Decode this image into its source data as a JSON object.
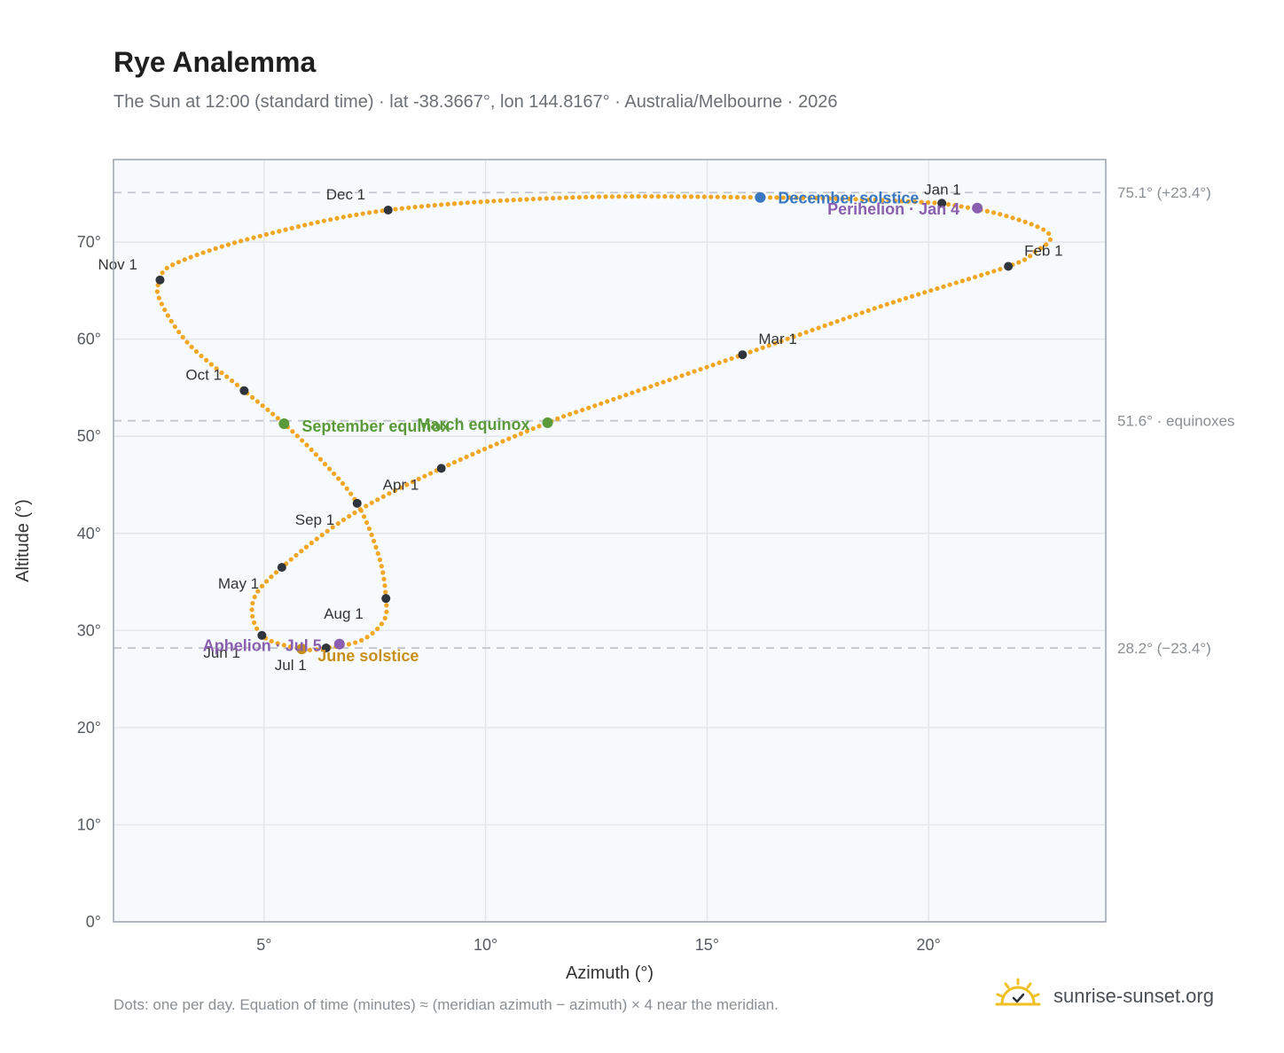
{
  "title": "Rye Analemma",
  "subtitle": "The Sun at 12:00 (standard time) · lat -38.3667°, lon 144.8167° · Australia/Melbourne · 2026",
  "footnote": "Dots: one per day. Equation of time (minutes) ≈ (meridian azimuth − azimuth) × 4 near the meridian.",
  "brand": {
    "text": "sunrise-sunset.org",
    "icon": "sun-logo-icon"
  },
  "colors": {
    "curve": "#f2a623",
    "month_dot": "#2f353d",
    "solstice_dec": "#3a78c2",
    "solstice_jun": "#c98f1b",
    "equinox": "#5a9a3a",
    "apsis": "#8a5fb0",
    "plot_bg": "#f7fafc",
    "grid": "#e3e7ec",
    "ref_line": "#c3c8ce"
  },
  "chart_data": {
    "type": "scatter",
    "title": "Rye Analemma",
    "xlabel": "Azimuth (°)",
    "ylabel": "Altitude (°)",
    "xlim": [
      1.6,
      24.0
    ],
    "ylim": [
      0,
      78.5
    ],
    "grid": true,
    "x_ticks": [
      {
        "value": 5,
        "label": "5°"
      },
      {
        "value": 10,
        "label": "10°"
      },
      {
        "value": 15,
        "label": "15°"
      },
      {
        "value": 20,
        "label": "20°"
      }
    ],
    "y_ticks": [
      {
        "value": 0,
        "label": "0°"
      },
      {
        "value": 10,
        "label": "10°"
      },
      {
        "value": 20,
        "label": "20°"
      },
      {
        "value": 30,
        "label": "30°"
      },
      {
        "value": 40,
        "label": "40°"
      },
      {
        "value": 50,
        "label": "50°"
      },
      {
        "value": 60,
        "label": "60°"
      },
      {
        "value": 70,
        "label": "70°"
      }
    ],
    "reference_lines": [
      {
        "y": 75.1,
        "label": "75.1° (+23.4°)"
      },
      {
        "y": 51.6,
        "label": "51.6° · equinoxes"
      },
      {
        "y": 28.2,
        "label": "28.2° (−23.4°)"
      }
    ],
    "months": [
      {
        "label": "Jan 1",
        "x": 20.3,
        "y": 74.0
      },
      {
        "label": "Feb 1",
        "x": 21.8,
        "y": 67.5
      },
      {
        "label": "Mar 1",
        "x": 15.8,
        "y": 58.4
      },
      {
        "label": "Apr 1",
        "x": 9.0,
        "y": 46.7
      },
      {
        "label": "May 1",
        "x": 5.4,
        "y": 36.5
      },
      {
        "label": "Jun 1",
        "x": 4.95,
        "y": 29.5
      },
      {
        "label": "Jul 1",
        "x": 6.4,
        "y": 28.2
      },
      {
        "label": "Aug 1",
        "x": 7.75,
        "y": 33.3
      },
      {
        "label": "Sep 1",
        "x": 7.1,
        "y": 43.1
      },
      {
        "label": "Oct 1",
        "x": 4.55,
        "y": 54.7
      },
      {
        "label": "Nov 1",
        "x": 2.65,
        "y": 66.1
      },
      {
        "label": "Dec 1",
        "x": 7.8,
        "y": 73.3
      }
    ],
    "events": [
      {
        "label": "December solstice",
        "x": 16.2,
        "y": 74.6,
        "color": "#3a78c2"
      },
      {
        "label": "Perihelion · Jan 4",
        "x": 21.1,
        "y": 73.5,
        "color": "#8a5fb0"
      },
      {
        "label": "March equinox",
        "x": 11.4,
        "y": 51.4,
        "color": "#5a9a3a"
      },
      {
        "label": "September equinox",
        "x": 5.45,
        "y": 51.3,
        "color": "#5a9a3a"
      },
      {
        "label": "June solstice",
        "x": 5.85,
        "y": 28.1,
        "color": "#c98f1b"
      },
      {
        "label": "Aphelion · Jul 5",
        "x": 6.7,
        "y": 28.6,
        "color": "#8a5fb0"
      }
    ],
    "daily_path_control": [
      {
        "x": 20.3,
        "y": 74.0
      },
      {
        "x": 21.5,
        "y": 73.0
      },
      {
        "x": 22.5,
        "y": 71.5
      },
      {
        "x": 22.75,
        "y": 70.3
      },
      {
        "x": 22.4,
        "y": 69.0
      },
      {
        "x": 21.8,
        "y": 67.5
      },
      {
        "x": 19.0,
        "y": 63.5
      },
      {
        "x": 15.8,
        "y": 58.4
      },
      {
        "x": 12.5,
        "y": 53.2
      },
      {
        "x": 11.4,
        "y": 51.4
      },
      {
        "x": 9.0,
        "y": 46.7
      },
      {
        "x": 7.0,
        "y": 42.0
      },
      {
        "x": 5.4,
        "y": 36.5
      },
      {
        "x": 4.75,
        "y": 33.0
      },
      {
        "x": 4.95,
        "y": 29.5
      },
      {
        "x": 5.85,
        "y": 28.1
      },
      {
        "x": 6.4,
        "y": 28.2
      },
      {
        "x": 7.2,
        "y": 29.0
      },
      {
        "x": 7.7,
        "y": 31.0
      },
      {
        "x": 7.75,
        "y": 33.3
      },
      {
        "x": 7.6,
        "y": 37.5
      },
      {
        "x": 7.1,
        "y": 43.1
      },
      {
        "x": 6.3,
        "y": 47.5
      },
      {
        "x": 5.45,
        "y": 51.3
      },
      {
        "x": 4.55,
        "y": 54.7
      },
      {
        "x": 3.3,
        "y": 59.5
      },
      {
        "x": 2.65,
        "y": 64.0
      },
      {
        "x": 2.65,
        "y": 66.1
      },
      {
        "x": 3.0,
        "y": 67.8
      },
      {
        "x": 4.8,
        "y": 70.5
      },
      {
        "x": 7.8,
        "y": 73.3
      },
      {
        "x": 12.0,
        "y": 74.6
      },
      {
        "x": 16.2,
        "y": 74.6
      },
      {
        "x": 18.5,
        "y": 74.4
      },
      {
        "x": 20.3,
        "y": 74.0
      }
    ]
  }
}
